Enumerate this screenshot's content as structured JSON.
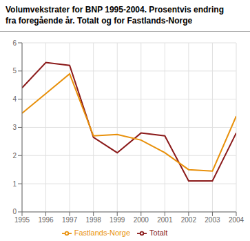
{
  "chart_data": {
    "type": "line",
    "title": "Volumvekstrater for BNP 1995-2004. Prosentvis endring\nfra foregående år. Totalt og for Fastlands-Norge",
    "x": [
      1995,
      1996,
      1997,
      1998,
      1999,
      2000,
      2001,
      2002,
      2003,
      2004
    ],
    "series": [
      {
        "name": "Totalt",
        "color": "#8B1A1A",
        "values": [
          4.4,
          5.3,
          5.2,
          2.65,
          2.1,
          2.8,
          2.7,
          1.1,
          1.1,
          2.8
        ]
      },
      {
        "name": "Fastlands-Norge",
        "color": "#E8900A",
        "values": [
          3.5,
          4.2,
          4.9,
          2.7,
          2.75,
          2.55,
          2.1,
          1.5,
          1.45,
          3.4
        ]
      }
    ],
    "xlim": [
      1995,
      2004
    ],
    "xticks": [
      1995,
      1996,
      1997,
      1998,
      1999,
      2000,
      2001,
      2002,
      2003,
      2004
    ],
    "ylim": [
      0,
      6
    ],
    "yticks": [
      0,
      1,
      2,
      3,
      4,
      5,
      6
    ],
    "grid": true,
    "legend": "bottom"
  }
}
